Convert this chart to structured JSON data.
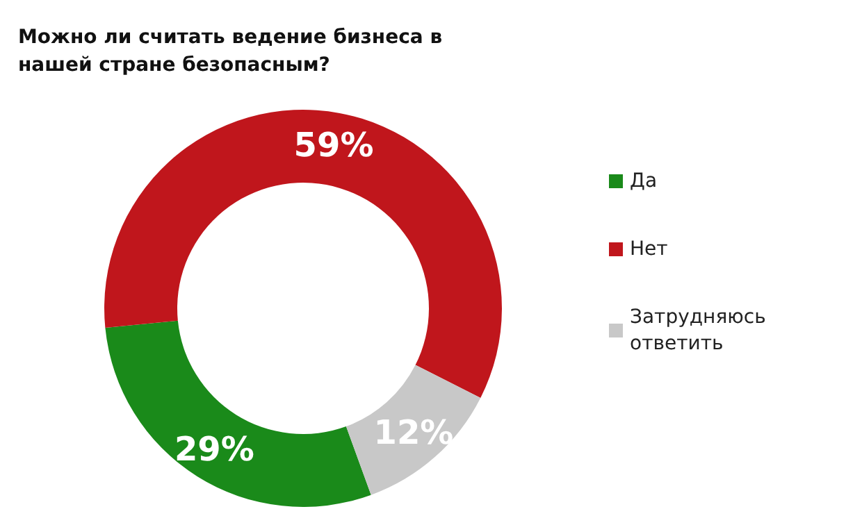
{
  "chart_data": {
    "type": "donut",
    "title": "Можно ли считать ведение бизнеса в нашей стране безопасным?",
    "categories": [
      "Да",
      "Нет",
      "Затрудняюсь ответить"
    ],
    "values": [
      29,
      59,
      12
    ],
    "colors": [
      "#1a8a1a",
      "#c0161c",
      "#c8c8c8"
    ],
    "value_labels": [
      "29%",
      "59%",
      "12%"
    ],
    "legend": "right"
  }
}
